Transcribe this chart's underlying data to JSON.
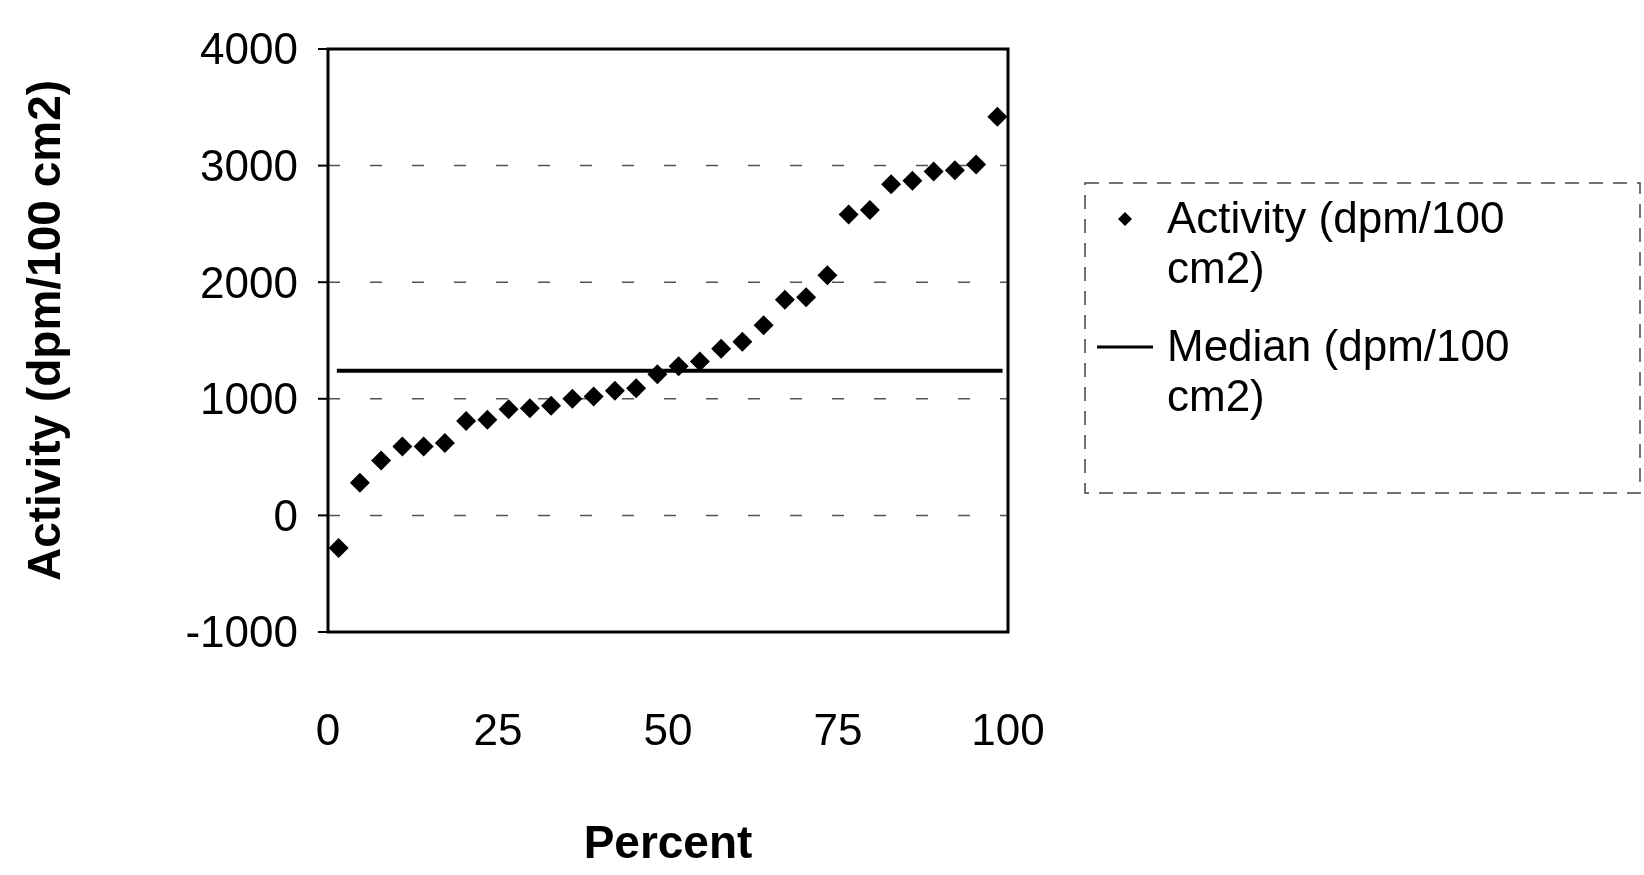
{
  "chart_data": {
    "type": "scatter",
    "xlabel": "Percent",
    "ylabel": "Activity (dpm/100 cm2)",
    "xlim": [
      0,
      100
    ],
    "xticks": [
      0,
      25,
      50,
      75,
      100
    ],
    "ylim": [
      -1000,
      4000
    ],
    "yticks": [
      -1000,
      0,
      1000,
      2000,
      3000,
      4000
    ],
    "grid": "y",
    "legend": "right",
    "series": [
      {
        "name": "Activity (dpm/100 cm2)",
        "color": "#000000",
        "marker": "diamond",
        "x": [
          1.56,
          4.69,
          7.81,
          10.94,
          14.06,
          17.19,
          20.31,
          23.44,
          26.56,
          29.69,
          32.81,
          35.94,
          39.06,
          42.19,
          45.31,
          48.44,
          51.56,
          54.69,
          57.81,
          60.94,
          64.06,
          67.19,
          70.31,
          73.44,
          76.56,
          79.69,
          82.81,
          85.94,
          89.06,
          92.19,
          95.31,
          98.44
        ],
        "values": [
          -280,
          280,
          470,
          590,
          590,
          620,
          810,
          820,
          910,
          920,
          940,
          1000,
          1020,
          1070,
          1090,
          1210,
          1280,
          1320,
          1430,
          1490,
          1630,
          1850,
          1870,
          2060,
          2580,
          2620,
          2840,
          2870,
          2950,
          2960,
          3010,
          3420
        ]
      },
      {
        "name": "Median (dpm/100 cm2)",
        "color": "#000000",
        "type": "line",
        "line_style": "solid",
        "x": [
          1.3,
          99.2
        ],
        "values": [
          1240,
          1240
        ]
      }
    ]
  }
}
